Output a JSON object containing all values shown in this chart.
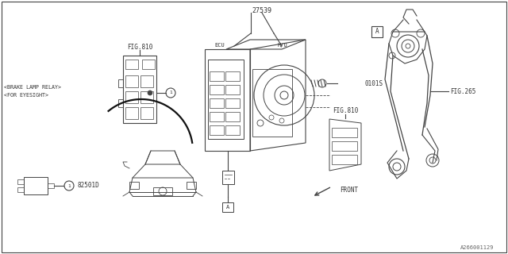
{
  "bg_color": "#ffffff",
  "line_color": "#444444",
  "text_color": "#333333",
  "fig_width": 6.4,
  "fig_height": 3.2,
  "dpi": 100,
  "labels": {
    "part_number": "27539",
    "hu": "H/U",
    "ecu": "ECU",
    "bolt": "0101S",
    "fig810_left": "FIG.810",
    "fig810_right": "FIG.810",
    "fig265": "FIG.265",
    "brake_relay": "<BRAKE LAMP RELAY>",
    "for_eyesight": "<FOR EYESIGHT>",
    "part82501": "82501D",
    "front": "FRONT",
    "ref_a": "A",
    "ref_a2": "A",
    "diagram_ref": "A266001129"
  }
}
